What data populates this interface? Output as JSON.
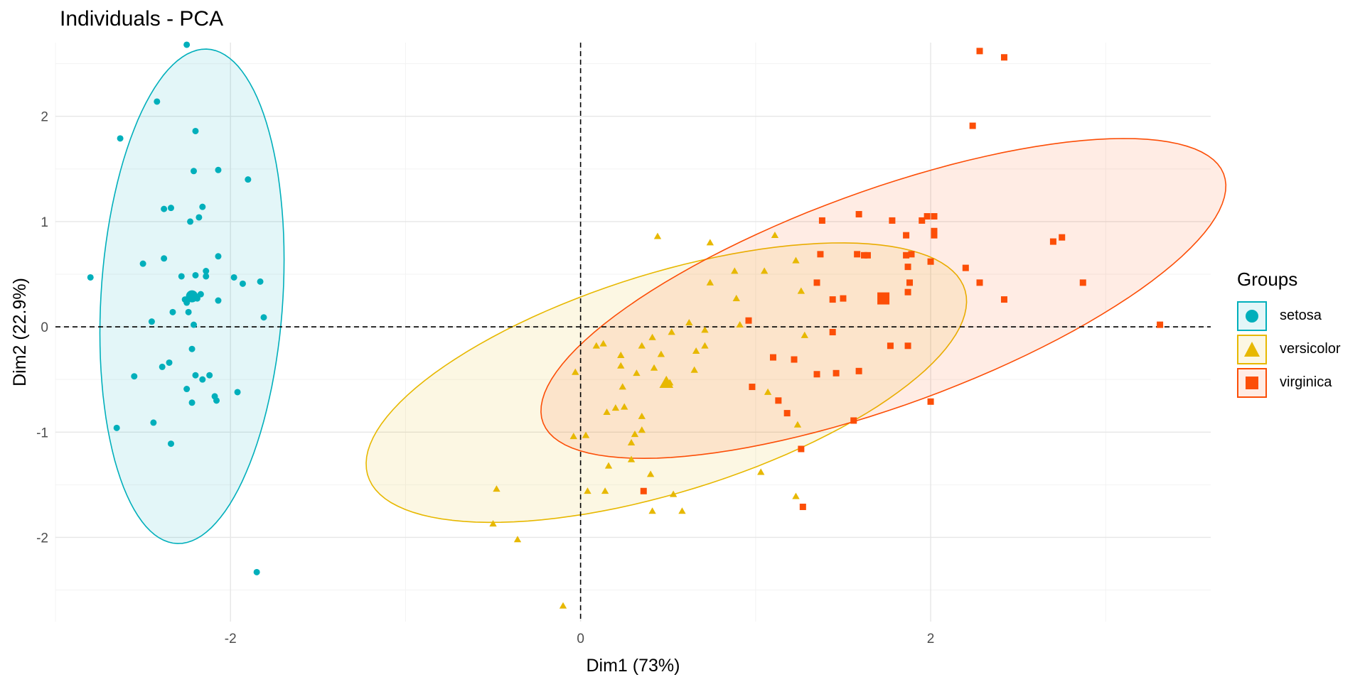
{
  "title": "Individuals - PCA",
  "legend": {
    "title": "Groups",
    "items": [
      {
        "label": "setosa",
        "color": "#00AFBB",
        "shape": "circle"
      },
      {
        "label": "versicolor",
        "color": "#E7B800",
        "shape": "triangle"
      },
      {
        "label": "virginica",
        "color": "#FC4E07",
        "shape": "square"
      }
    ]
  },
  "chart_data": {
    "type": "scatter",
    "title": "Individuals - PCA",
    "xlabel": "Dim1 (73%)",
    "ylabel": "Dim2 (22.9%)",
    "xlim": [
      -3,
      3.6
    ],
    "ylim": [
      -2.8,
      2.7
    ],
    "x_ticks": [
      -2,
      0,
      2
    ],
    "x_tick_labels": [
      "-2",
      "0",
      "2"
    ],
    "y_ticks": [
      -2,
      -1,
      0,
      1,
      2
    ],
    "y_tick_labels": [
      "-2",
      "-1",
      "0",
      "1",
      "2"
    ],
    "grid": true,
    "reference_lines": {
      "x": 0,
      "y": 0
    },
    "legend_position": "right",
    "series": [
      {
        "name": "setosa",
        "color": "#00AFBB",
        "shape": "circle",
        "centroid": [
          -2.22,
          0.29
        ],
        "ellipse": {
          "cx": -2.22,
          "cy": 0.29,
          "rx": 0.52,
          "ry": 2.35,
          "angle_deg": -2
        },
        "points": [
          [
            -2.25,
            2.68
          ],
          [
            -2.42,
            2.14
          ],
          [
            -2.63,
            1.79
          ],
          [
            -2.2,
            1.86
          ],
          [
            -2.07,
            1.49
          ],
          [
            -2.21,
            1.48
          ],
          [
            -1.9,
            1.4
          ],
          [
            -2.16,
            1.14
          ],
          [
            -2.34,
            1.13
          ],
          [
            -2.38,
            1.12
          ],
          [
            -2.18,
            1.04
          ],
          [
            -2.23,
            1.0
          ],
          [
            -2.07,
            0.67
          ],
          [
            -2.38,
            0.65
          ],
          [
            -2.5,
            0.6
          ],
          [
            -2.14,
            0.53
          ],
          [
            -2.2,
            0.49
          ],
          [
            -2.28,
            0.48
          ],
          [
            -1.98,
            0.47
          ],
          [
            -2.8,
            0.47
          ],
          [
            -1.83,
            0.43
          ],
          [
            -1.93,
            0.41
          ],
          [
            -2.17,
            0.31
          ],
          [
            -2.23,
            0.29
          ],
          [
            -2.26,
            0.26
          ],
          [
            -2.19,
            0.27
          ],
          [
            -2.25,
            0.23
          ],
          [
            -2.07,
            0.25
          ],
          [
            -2.24,
            0.14
          ],
          [
            -2.33,
            0.14
          ],
          [
            -1.81,
            0.09
          ],
          [
            -2.45,
            0.05
          ],
          [
            -2.21,
            0.02
          ],
          [
            -2.22,
            -0.21
          ],
          [
            -2.35,
            -0.34
          ],
          [
            -2.39,
            -0.38
          ],
          [
            -2.2,
            -0.46
          ],
          [
            -2.12,
            -0.46
          ],
          [
            -2.16,
            -0.5
          ],
          [
            -2.55,
            -0.47
          ],
          [
            -2.25,
            -0.59
          ],
          [
            -1.96,
            -0.62
          ],
          [
            -2.09,
            -0.66
          ],
          [
            -2.08,
            -0.7
          ],
          [
            -2.22,
            -0.72
          ],
          [
            -2.44,
            -0.91
          ],
          [
            -2.65,
            -0.96
          ],
          [
            -2.34,
            -1.11
          ],
          [
            -1.85,
            -2.33
          ],
          [
            -2.14,
            0.48
          ]
        ]
      },
      {
        "name": "versicolor",
        "color": "#E7B800",
        "shape": "triangle",
        "centroid": [
          0.49,
          -0.53
        ],
        "ellipse": {
          "cx": 0.49,
          "cy": -0.53,
          "rx": 1.95,
          "ry": 0.95,
          "angle_deg": 33
        },
        "points": [
          [
            1.11,
            0.87
          ],
          [
            0.44,
            0.86
          ],
          [
            0.74,
            0.8
          ],
          [
            0.88,
            0.53
          ],
          [
            1.05,
            0.53
          ],
          [
            1.23,
            0.63
          ],
          [
            0.74,
            0.42
          ],
          [
            1.26,
            0.34
          ],
          [
            0.89,
            0.27
          ],
          [
            0.62,
            0.04
          ],
          [
            0.71,
            -0.03
          ],
          [
            0.52,
            -0.05
          ],
          [
            0.41,
            -0.1
          ],
          [
            0.91,
            0.02
          ],
          [
            1.28,
            -0.08
          ],
          [
            0.71,
            -0.18
          ],
          [
            0.35,
            -0.18
          ],
          [
            0.09,
            -0.18
          ],
          [
            0.13,
            -0.16
          ],
          [
            0.66,
            -0.23
          ],
          [
            0.46,
            -0.26
          ],
          [
            0.23,
            -0.27
          ],
          [
            0.23,
            -0.37
          ],
          [
            0.42,
            -0.39
          ],
          [
            0.32,
            -0.44
          ],
          [
            0.65,
            -0.41
          ],
          [
            -0.03,
            -0.43
          ],
          [
            0.51,
            -0.53
          ],
          [
            0.24,
            -0.57
          ],
          [
            1.07,
            -0.62
          ],
          [
            0.2,
            -0.77
          ],
          [
            0.25,
            -0.76
          ],
          [
            0.15,
            -0.81
          ],
          [
            0.35,
            -0.85
          ],
          [
            0.35,
            -0.98
          ],
          [
            0.31,
            -1.02
          ],
          [
            -0.04,
            -1.04
          ],
          [
            0.03,
            -1.03
          ],
          [
            0.29,
            -1.1
          ],
          [
            0.29,
            -1.26
          ],
          [
            0.16,
            -1.32
          ],
          [
            0.4,
            -1.4
          ],
          [
            -0.48,
            -1.54
          ],
          [
            0.04,
            -1.56
          ],
          [
            0.14,
            -1.56
          ],
          [
            0.53,
            -1.59
          ],
          [
            1.03,
            -1.38
          ],
          [
            0.41,
            -1.75
          ],
          [
            -0.5,
            -1.87
          ],
          [
            -0.36,
            -2.02
          ],
          [
            1.23,
            -1.61
          ],
          [
            -0.1,
            -2.65
          ],
          [
            0.58,
            -1.75
          ],
          [
            1.24,
            -0.93
          ]
        ]
      },
      {
        "name": "virginica",
        "color": "#FC4E07",
        "shape": "square",
        "centroid": [
          1.73,
          0.27
        ],
        "ellipse": {
          "cx": 1.73,
          "cy": 0.27,
          "rx": 2.3,
          "ry": 0.92,
          "angle_deg": 35
        },
        "points": [
          [
            2.28,
            2.62
          ],
          [
            2.42,
            2.56
          ],
          [
            2.24,
            1.91
          ],
          [
            2.02,
            0.87
          ],
          [
            2.02,
            0.91
          ],
          [
            2.02,
            1.05
          ],
          [
            1.95,
            1.01
          ],
          [
            1.78,
            1.01
          ],
          [
            1.38,
            1.01
          ],
          [
            1.59,
            1.07
          ],
          [
            1.86,
            0.87
          ],
          [
            1.89,
            0.69
          ],
          [
            1.86,
            0.68
          ],
          [
            1.62,
            0.68
          ],
          [
            1.37,
            0.69
          ],
          [
            2.75,
            0.85
          ],
          [
            2.7,
            0.81
          ],
          [
            2.0,
            0.62
          ],
          [
            2.2,
            0.56
          ],
          [
            1.87,
            0.57
          ],
          [
            1.88,
            0.42
          ],
          [
            1.35,
            0.42
          ],
          [
            2.28,
            0.42
          ],
          [
            2.87,
            0.42
          ],
          [
            1.87,
            0.33
          ],
          [
            1.44,
            0.26
          ],
          [
            1.5,
            0.27
          ],
          [
            2.42,
            0.26
          ],
          [
            3.31,
            0.02
          ],
          [
            1.44,
            -0.05
          ],
          [
            0.96,
            0.06
          ],
          [
            1.58,
            0.69
          ],
          [
            1.77,
            -0.18
          ],
          [
            1.87,
            -0.18
          ],
          [
            1.1,
            -0.29
          ],
          [
            1.22,
            -0.31
          ],
          [
            1.35,
            -0.45
          ],
          [
            1.59,
            -0.42
          ],
          [
            1.46,
            -0.44
          ],
          [
            0.98,
            -0.57
          ],
          [
            1.13,
            -0.7
          ],
          [
            1.18,
            -0.82
          ],
          [
            2.0,
            -0.71
          ],
          [
            1.56,
            -0.89
          ],
          [
            1.26,
            -1.16
          ],
          [
            0.36,
            -1.56
          ],
          [
            1.27,
            -1.71
          ],
          [
            1.73,
            0.27
          ],
          [
            1.98,
            1.05
          ],
          [
            1.64,
            0.68
          ]
        ]
      }
    ]
  }
}
